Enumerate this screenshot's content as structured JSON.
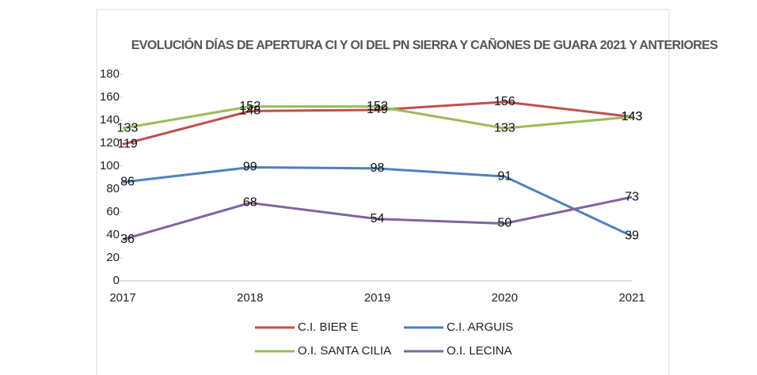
{
  "chart_data": {
    "type": "line",
    "title": "EVOLUCIÓN DÍAS DE APERTURA CI Y OI DEL PN SIERRA Y CAÑONES DE GUARA 2021 Y ANTERIORES",
    "categories": [
      "2017",
      "2018",
      "2019",
      "2020",
      "2021"
    ],
    "series": [
      {
        "name": "C.I. BIER E",
        "color": "#c0504d",
        "values": [
          119,
          148,
          149,
          156,
          143
        ]
      },
      {
        "name": "C.I. ARGUIS",
        "color": "#4f81bd",
        "values": [
          86,
          99,
          98,
          91,
          39
        ]
      },
      {
        "name": "O.I. SANTA CILIA",
        "color": "#9bbb59",
        "values": [
          133,
          152,
          152,
          133,
          143
        ]
      },
      {
        "name": "O.I. LECINA",
        "color": "#8064a2",
        "values": [
          36,
          68,
          54,
          50,
          73
        ]
      }
    ],
    "ylim": [
      0,
      180
    ],
    "yticks": [
      0,
      20,
      40,
      60,
      80,
      100,
      120,
      140,
      160,
      180
    ],
    "grid": false,
    "legend": "bottom"
  }
}
